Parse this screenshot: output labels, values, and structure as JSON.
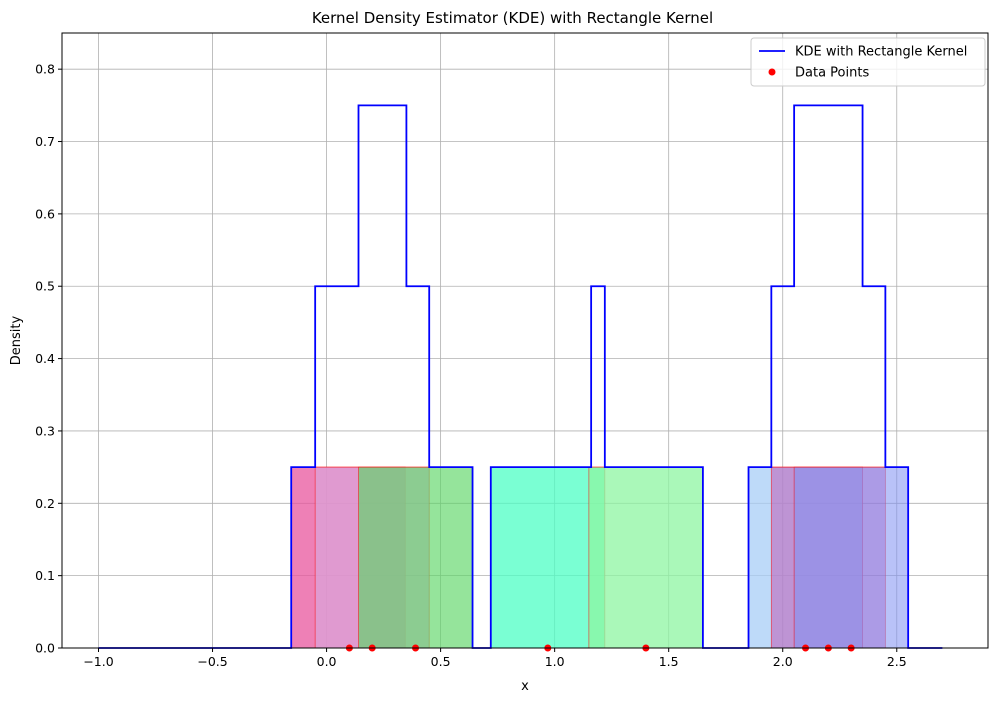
{
  "chart_data": {
    "type": "line",
    "title": "Kernel Density Estimator (KDE) with Rectangle Kernel",
    "xlabel": "x",
    "ylabel": "Density",
    "xlim": [
      -1.16,
      2.9
    ],
    "ylim": [
      0,
      0.85
    ],
    "xticks": [
      -1.0,
      -0.5,
      0.0,
      0.5,
      1.0,
      1.5,
      2.0,
      2.5
    ],
    "xtick_labels": [
      "−1.0",
      "−0.5",
      "0.0",
      "0.5",
      "1.0",
      "1.5",
      "2.0",
      "2.5"
    ],
    "yticks": [
      0.0,
      0.1,
      0.2,
      0.3,
      0.4,
      0.5,
      0.6,
      0.7,
      0.8
    ],
    "ytick_labels": [
      "0.0",
      "0.1",
      "0.2",
      "0.3",
      "0.4",
      "0.5",
      "0.6",
      "0.7",
      "0.8"
    ],
    "grid": true,
    "legend_position": "top-right",
    "series": [
      {
        "name": "KDE with Rectangle Kernel",
        "kind": "step-line",
        "color": "#0000ff",
        "points": [
          [
            -1.0,
            0.0
          ],
          [
            -0.155,
            0.0
          ],
          [
            -0.155,
            0.25
          ],
          [
            -0.05,
            0.25
          ],
          [
            -0.05,
            0.5
          ],
          [
            0.14,
            0.5
          ],
          [
            0.14,
            0.75
          ],
          [
            0.35,
            0.75
          ],
          [
            0.35,
            0.5
          ],
          [
            0.45,
            0.5
          ],
          [
            0.45,
            0.25
          ],
          [
            0.64,
            0.25
          ],
          [
            0.64,
            0.0
          ],
          [
            0.72,
            0.0
          ],
          [
            0.72,
            0.25
          ],
          [
            1.16,
            0.25
          ],
          [
            1.16,
            0.5
          ],
          [
            1.22,
            0.5
          ],
          [
            1.22,
            0.25
          ],
          [
            1.65,
            0.25
          ],
          [
            1.65,
            0.0
          ],
          [
            1.85,
            0.0
          ],
          [
            1.85,
            0.25
          ],
          [
            1.95,
            0.25
          ],
          [
            1.95,
            0.5
          ],
          [
            2.05,
            0.5
          ],
          [
            2.05,
            0.75
          ],
          [
            2.35,
            0.75
          ],
          [
            2.35,
            0.5
          ],
          [
            2.45,
            0.5
          ],
          [
            2.45,
            0.25
          ],
          [
            2.55,
            0.25
          ],
          [
            2.55,
            0.0
          ],
          [
            2.7,
            0.0
          ]
        ]
      },
      {
        "name": "Data Points",
        "kind": "scatter",
        "color": "#ff0000",
        "x": [
          0.1,
          0.2,
          0.39,
          0.97,
          1.4,
          2.1,
          2.2,
          2.3
        ],
        "y": [
          0,
          0,
          0,
          0,
          0,
          0,
          0,
          0
        ]
      }
    ],
    "kernels": [
      {
        "x0": -0.155,
        "x1": 0.345,
        "height": 0.25,
        "color": "#e8569e",
        "opacity": 0.75
      },
      {
        "x0": -0.05,
        "x1": 0.45,
        "height": 0.25,
        "color": "#dba3d8",
        "opacity": 0.75
      },
      {
        "x0": 0.14,
        "x1": 0.64,
        "height": 0.25,
        "color": "#5cd666",
        "opacity": 0.65
      },
      {
        "x0": 0.72,
        "x1": 1.22,
        "height": 0.25,
        "color": "#4dffc4",
        "opacity": 0.75
      },
      {
        "x0": 1.15,
        "x1": 1.65,
        "height": 0.25,
        "color": "#8ef5a2",
        "opacity": 0.75
      },
      {
        "x0": 1.85,
        "x1": 2.35,
        "height": 0.25,
        "color": "#a8cdf7",
        "opacity": 0.75
      },
      {
        "x0": 1.95,
        "x1": 2.45,
        "height": 0.25,
        "color": "#bf3fa6",
        "opacity": 0.45
      },
      {
        "x0": 2.05,
        "x1": 2.55,
        "height": 0.25,
        "color": "#7f8ff2",
        "opacity": 0.55
      }
    ]
  }
}
